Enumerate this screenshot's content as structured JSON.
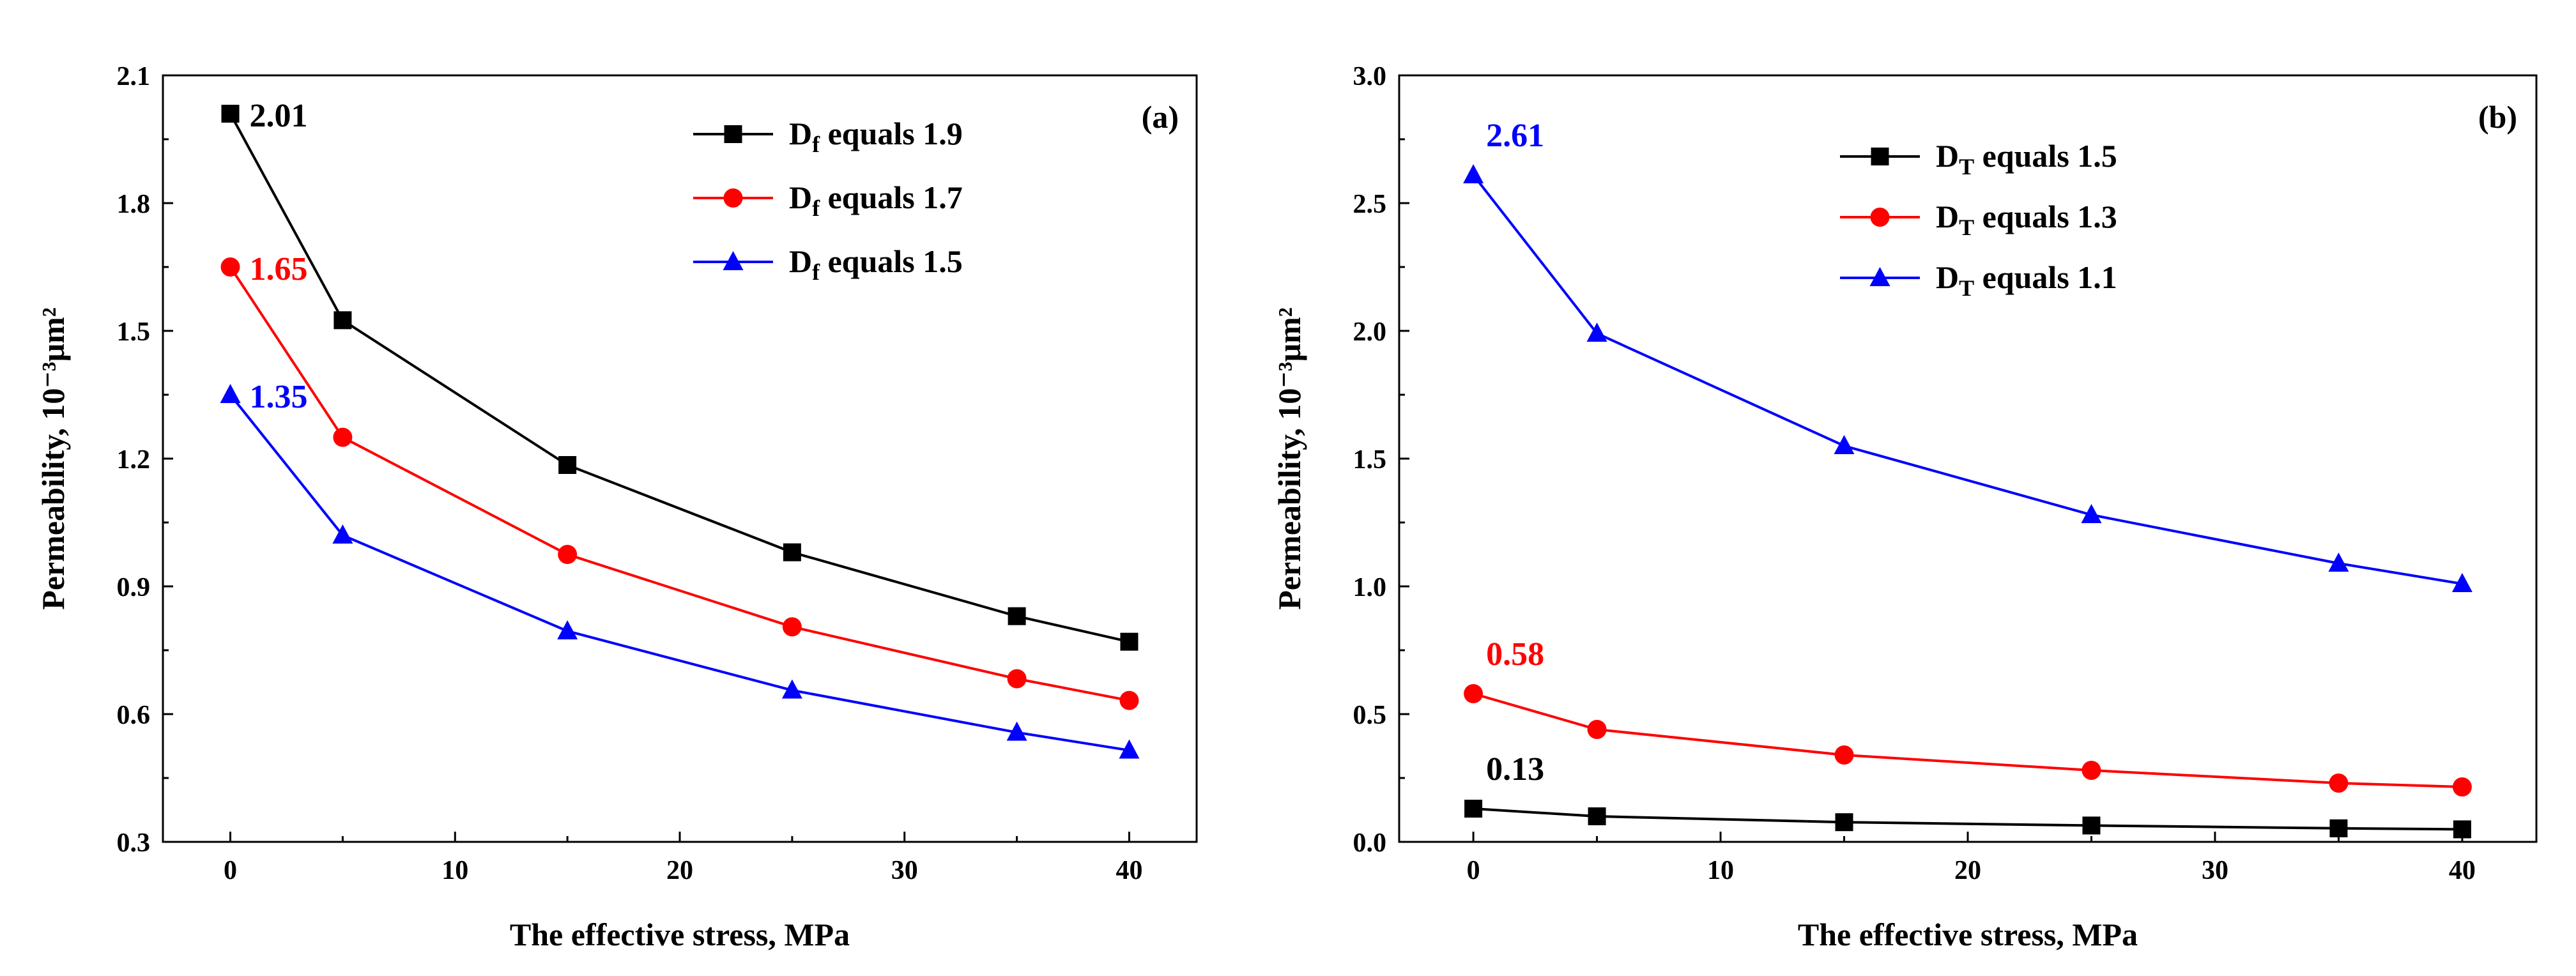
{
  "chart_data": [
    {
      "type": "line",
      "panel_label": "(a)",
      "xlabel": "The effective stress, MPa",
      "ylabel": "Permeability, 10⁻³μm²",
      "xlim": [
        -3,
        43
      ],
      "ylim": [
        0.3,
        2.1
      ],
      "xticks": [
        "0",
        "10",
        "20",
        "30",
        "40"
      ],
      "yticks": [
        "0.3",
        "0.6",
        "0.9",
        "1.2",
        "1.5",
        "1.8",
        "2.1"
      ],
      "x": [
        0,
        5,
        15,
        25,
        35,
        40
      ],
      "legend_position": "top-right",
      "series": [
        {
          "name": "Df equals 1.9",
          "name_main": "D",
          "name_sub": "f",
          "name_rest": " equals 1.9",
          "color": "#000000",
          "marker": "square",
          "values": [
            2.01,
            1.525,
            1.185,
            0.98,
            0.83,
            0.77
          ]
        },
        {
          "name": "Df equals 1.7",
          "name_main": "D",
          "name_sub": "f",
          "name_rest": " equals 1.7",
          "color": "#ff0000",
          "marker": "circle",
          "values": [
            1.65,
            1.25,
            0.975,
            0.805,
            0.683,
            0.632
          ]
        },
        {
          "name": "Df equals 1.5",
          "name_main": "D",
          "name_sub": "f",
          "name_rest": " equals 1.5",
          "color": "#0000ff",
          "marker": "triangle",
          "values": [
            1.35,
            1.02,
            0.795,
            0.656,
            0.557,
            0.515
          ]
        }
      ],
      "annotations": [
        {
          "text": "2.01",
          "x": 0,
          "y": 2.01,
          "color": "#000000"
        },
        {
          "text": "1.65",
          "x": 0,
          "y": 1.65,
          "color": "#ff0000"
        },
        {
          "text": "1.35",
          "x": 0,
          "y": 1.35,
          "color": "#0000ff"
        }
      ]
    },
    {
      "type": "line",
      "panel_label": "(b)",
      "xlabel": "The effective stress, MPa",
      "ylabel": "Permeability, 10⁻³μm²",
      "xlim": [
        -3,
        43
      ],
      "ylim": [
        0.0,
        3.0
      ],
      "xticks": [
        "0",
        "10",
        "20",
        "30",
        "40"
      ],
      "yticks": [
        "0.0",
        "0.5",
        "1.0",
        "1.5",
        "2.0",
        "2.5",
        "3.0"
      ],
      "x": [
        0,
        5,
        15,
        25,
        35,
        40
      ],
      "legend_position": "top-center",
      "series": [
        {
          "name": "DT equals 1.5",
          "name_main": "D",
          "name_sub": "T",
          "name_rest": " equals 1.5",
          "color": "#000000",
          "marker": "square",
          "values": [
            0.13,
            0.1,
            0.077,
            0.064,
            0.053,
            0.049
          ]
        },
        {
          "name": "DT equals 1.3",
          "name_main": "D",
          "name_sub": "T",
          "name_rest": " equals 1.3",
          "color": "#ff0000",
          "marker": "circle",
          "values": [
            0.58,
            0.44,
            0.34,
            0.28,
            0.23,
            0.215
          ]
        },
        {
          "name": "DT equals 1.1",
          "name_main": "D",
          "name_sub": "T",
          "name_rest": " equals 1.1",
          "color": "#0000ff",
          "marker": "triangle",
          "values": [
            2.61,
            1.99,
            1.55,
            1.28,
            1.09,
            1.01
          ]
        }
      ],
      "annotations": [
        {
          "text": "2.61",
          "x": 0,
          "y": 2.61,
          "color": "#0000ff"
        },
        {
          "text": "0.58",
          "x": 0,
          "y": 0.58,
          "color": "#ff0000"
        },
        {
          "text": "0.13",
          "x": 0,
          "y": 0.13,
          "color": "#000000"
        }
      ]
    }
  ]
}
